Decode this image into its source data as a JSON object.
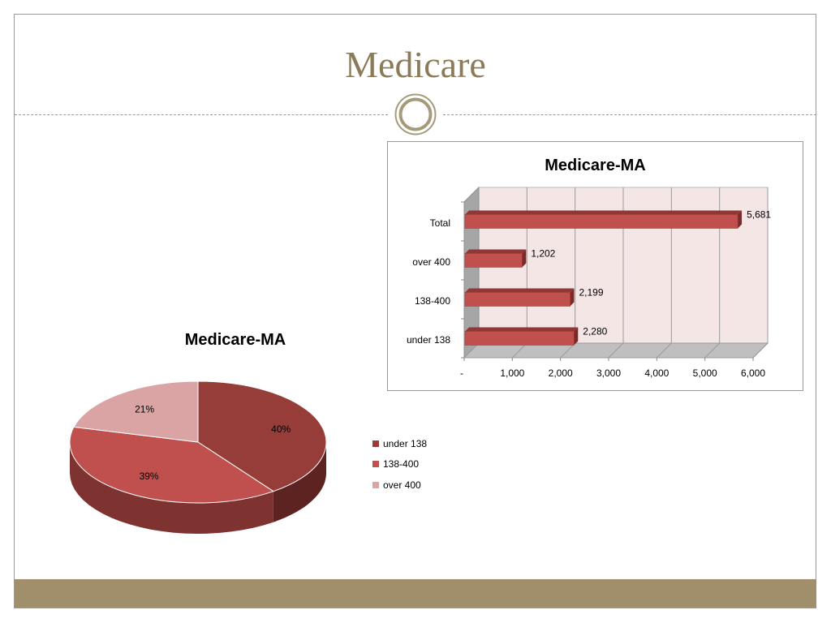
{
  "slide": {
    "title": "Medicare"
  },
  "colors": {
    "title": "#8c7b59",
    "frame": "#a59a7b",
    "footer": "#a18e6b",
    "bar_fill": "#c0504d",
    "bar_top": "#8f3835",
    "plot_back": "#f5e6e6",
    "pie_under_138": "#963c39",
    "pie_138_400": "#c0504d",
    "pie_over_400": "#d9a4a3"
  },
  "chart_data": [
    {
      "type": "bar",
      "orientation": "horizontal",
      "three_d": true,
      "title": "Medicare-MA",
      "categories": [
        "Total",
        "over 400",
        "138-400",
        "under 138"
      ],
      "values": [
        5681,
        1202,
        2199,
        2280
      ],
      "value_labels": [
        "5,681",
        "1,202",
        "2,199",
        "2,280"
      ],
      "xlim": [
        0,
        6000
      ],
      "x_ticks": [
        0,
        1000,
        2000,
        3000,
        4000,
        5000,
        6000
      ],
      "x_tick_labels": [
        "-",
        "1,000",
        "2,000",
        "3,000",
        "4,000",
        "5,000",
        "6,000"
      ],
      "grid": true
    },
    {
      "type": "pie",
      "three_d": true,
      "title": "Medicare-MA",
      "categories": [
        "under 138",
        "138-400",
        "over 400"
      ],
      "values": [
        40,
        39,
        21
      ],
      "value_labels": [
        "40%",
        "39%",
        "21%"
      ],
      "legend": {
        "position": "right",
        "items": [
          "under 138",
          "138-400",
          "over 400"
        ]
      }
    }
  ]
}
